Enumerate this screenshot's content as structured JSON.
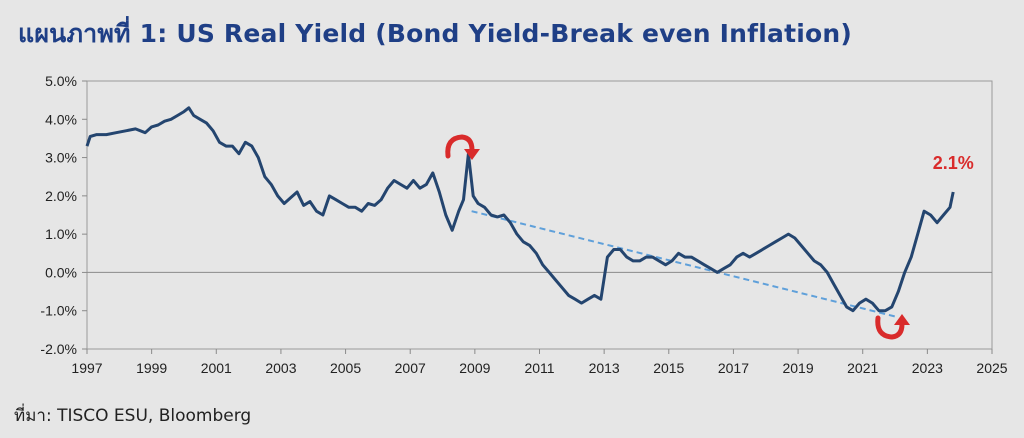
{
  "header": {
    "title": "แผนภาพที่ 1: US Real Yield (Bond Yield-Break even Inflation)"
  },
  "footer": {
    "source": "ที่มา: TISCO ESU, Bloomberg"
  },
  "colors": {
    "line": "#24456f",
    "trend": "#5fa0da",
    "annotation": "#d92b2b",
    "plot_bg": "#e6e6e6",
    "frame": "#9a9a9a"
  },
  "chart_data": {
    "type": "line",
    "title": "US Real Yield (Bond Yield-Break even Inflation)",
    "xlim": [
      1997,
      2025
    ],
    "ylim": [
      -2.0,
      5.0
    ],
    "x_ticks": [
      1997,
      1999,
      2001,
      2003,
      2005,
      2007,
      2009,
      2011,
      2013,
      2015,
      2017,
      2019,
      2021,
      2023,
      2025
    ],
    "x_tick_labels": [
      "1997",
      "1999",
      "2001",
      "2003",
      "2005",
      "2007",
      "2009",
      "2011",
      "2013",
      "2015",
      "2017",
      "2019",
      "2021",
      "2023",
      "2025"
    ],
    "y_ticks": [
      5.0,
      4.0,
      3.0,
      2.0,
      1.0,
      0.0,
      -1.0,
      -2.0
    ],
    "y_tick_labels": [
      "5.0%",
      "4.0%",
      "3.0%",
      "2.0%",
      "1.0%",
      "0.0%",
      "-1.0%",
      "-2.0%"
    ],
    "grid": false,
    "series": [
      {
        "values_x": [
          1997.0,
          1997.1,
          1997.3,
          1997.6,
          1997.9,
          1998.2,
          1998.5,
          1998.8,
          1999.0,
          1999.2,
          1999.4,
          1999.6,
          1999.8,
          2000.0,
          2000.15,
          2000.3,
          2000.5,
          2000.7,
          2000.9,
          2001.1,
          2001.3,
          2001.5,
          2001.7,
          2001.9,
          2002.1,
          2002.3,
          2002.5,
          2002.7,
          2002.9,
          2003.1,
          2003.3,
          2003.5,
          2003.7,
          2003.9,
          2004.1,
          2004.3,
          2004.5,
          2004.7,
          2004.9,
          2005.1,
          2005.3,
          2005.5,
          2005.7,
          2005.9,
          2006.1,
          2006.3,
          2006.5,
          2006.7,
          2006.9,
          2007.1,
          2007.3,
          2007.5,
          2007.7,
          2007.9,
          2008.1,
          2008.3,
          2008.5,
          2008.65,
          2008.8,
          2008.95,
          2009.1,
          2009.3,
          2009.5,
          2009.7,
          2009.9,
          2010.1,
          2010.3,
          2010.5,
          2010.7,
          2010.9,
          2011.1,
          2011.3,
          2011.5,
          2011.7,
          2011.9,
          2012.1,
          2012.3,
          2012.5,
          2012.7,
          2012.9,
          2013.1,
          2013.3,
          2013.5,
          2013.7,
          2013.9,
          2014.1,
          2014.3,
          2014.5,
          2014.7,
          2014.9,
          2015.1,
          2015.3,
          2015.5,
          2015.7,
          2015.9,
          2016.1,
          2016.3,
          2016.5,
          2016.7,
          2016.9,
          2017.1,
          2017.3,
          2017.5,
          2017.7,
          2017.9,
          2018.1,
          2018.3,
          2018.5,
          2018.7,
          2018.9,
          2019.1,
          2019.3,
          2019.5,
          2019.7,
          2019.9,
          2020.1,
          2020.3,
          2020.5,
          2020.7,
          2020.9,
          2021.1,
          2021.3,
          2021.5,
          2021.7,
          2021.9,
          2022.1,
          2022.3,
          2022.5,
          2022.7,
          2022.9,
          2023.1,
          2023.3,
          2023.5,
          2023.7,
          2023.8
        ],
        "values_y": [
          3.3,
          3.55,
          3.6,
          3.6,
          3.65,
          3.7,
          3.75,
          3.65,
          3.8,
          3.85,
          3.95,
          4.0,
          4.1,
          4.2,
          4.3,
          4.1,
          4.0,
          3.9,
          3.7,
          3.4,
          3.3,
          3.3,
          3.1,
          3.4,
          3.3,
          3.0,
          2.5,
          2.3,
          2.0,
          1.8,
          1.95,
          2.1,
          1.75,
          1.85,
          1.6,
          1.5,
          2.0,
          1.9,
          1.8,
          1.7,
          1.7,
          1.6,
          1.8,
          1.75,
          1.9,
          2.2,
          2.4,
          2.3,
          2.2,
          2.4,
          2.2,
          2.3,
          2.6,
          2.1,
          1.5,
          1.1,
          1.6,
          1.9,
          3.1,
          2.0,
          1.8,
          1.7,
          1.5,
          1.45,
          1.5,
          1.3,
          1.0,
          0.8,
          0.7,
          0.5,
          0.2,
          0.0,
          -0.2,
          -0.4,
          -0.6,
          -0.7,
          -0.8,
          -0.7,
          -0.6,
          -0.7,
          0.4,
          0.6,
          0.6,
          0.4,
          0.3,
          0.3,
          0.4,
          0.4,
          0.3,
          0.2,
          0.3,
          0.5,
          0.4,
          0.4,
          0.3,
          0.2,
          0.1,
          0.0,
          0.1,
          0.2,
          0.4,
          0.5,
          0.4,
          0.5,
          0.6,
          0.7,
          0.8,
          0.9,
          1.0,
          0.9,
          0.7,
          0.5,
          0.3,
          0.2,
          0.0,
          -0.3,
          -0.6,
          -0.9,
          -1.0,
          -0.8,
          -0.7,
          -0.8,
          -1.0,
          -1.0,
          -0.9,
          -0.5,
          0.0,
          0.4,
          1.0,
          1.6,
          1.5,
          1.3,
          1.5,
          1.7,
          2.1
        ]
      }
    ],
    "trendline": {
      "x": [
        2008.9,
        2022.0
      ],
      "y": [
        1.6,
        -1.15
      ]
    },
    "annotations": [
      {
        "text": "2.1%",
        "x": 2023.8,
        "y": 2.7
      }
    ]
  }
}
